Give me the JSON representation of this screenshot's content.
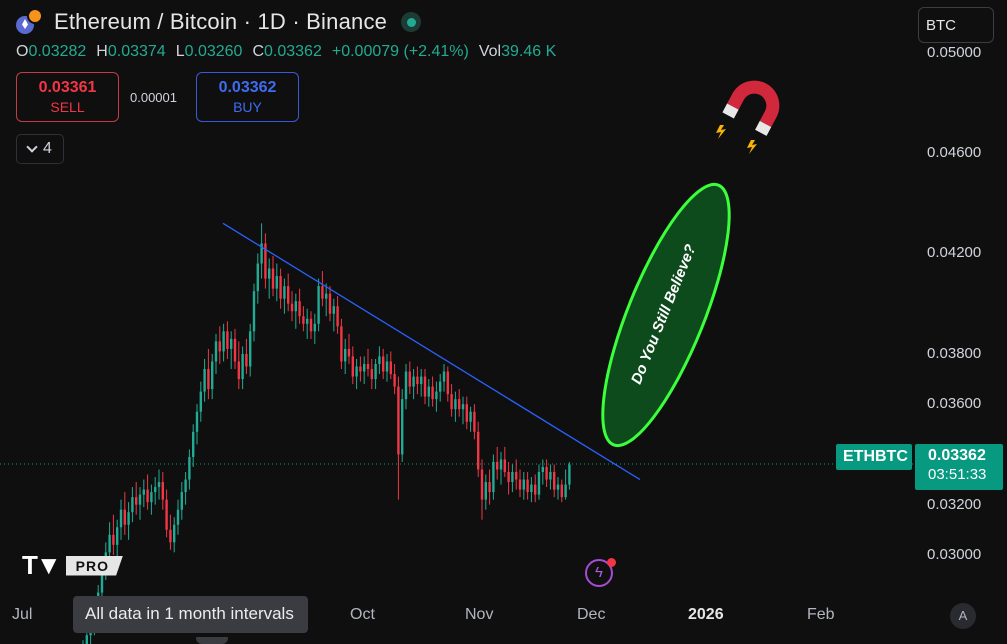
{
  "header": {
    "title": "Ethereum / Bitcoin · 1D · Binance",
    "ohlc": [
      {
        "k": "O",
        "v": "0.03282"
      },
      {
        "k": "H",
        "v": "0.03374"
      },
      {
        "k": "L",
        "v": "0.03260"
      },
      {
        "k": "C",
        "v": "0.03362"
      },
      {
        "k": "",
        "v": "+0.00079 (+2.41%)"
      },
      {
        "k": "Vol",
        "v": "39.46 K"
      }
    ]
  },
  "trade": {
    "sell_price": "0.03361",
    "sell_label": "SELL",
    "buy_price": "0.03362",
    "buy_label": "BUY",
    "spread": "0.00001"
  },
  "indicators_count": "4",
  "currency_label": "BTC",
  "logo_badge": "PRO",
  "tooltip": "All data in 1 month intervals",
  "last_price": {
    "symbol": "ETHBTC",
    "price": "0.03362",
    "countdown": "03:51:33"
  },
  "auto_scale_label": "A",
  "colors": {
    "up": "#22ab94",
    "down": "#f23645",
    "trendline": "#2962ff",
    "annotation_fill": "#0d4a1c",
    "annotation_stroke": "#3cff3c",
    "last_price": "#089981"
  },
  "chart_data": {
    "type": "candlestick",
    "yticks": [
      "0.05000",
      "0.04600",
      "0.04200",
      "0.03800",
      "0.03600",
      "0.03200",
      "0.03000"
    ],
    "xticks": [
      {
        "label": "Jul",
        "bold": false
      },
      {
        "label": "Oct",
        "bold": false
      },
      {
        "label": "Nov",
        "bold": false
      },
      {
        "label": "Dec",
        "bold": false
      },
      {
        "label": "2026",
        "bold": true
      },
      {
        "label": "Feb",
        "bold": false
      }
    ],
    "annotation": "Do You Still Believe?",
    "trendline": {
      "from": [
        "2025-08-23",
        0.0432
      ],
      "to": [
        "2025-12-18",
        0.033
      ]
    },
    "last_price_line": 0.03362,
    "candles_ohlc": [
      [
        0.0259,
        0.0266,
        0.0255,
        0.0263
      ],
      [
        0.0263,
        0.027,
        0.0259,
        0.0268
      ],
      [
        0.0268,
        0.0276,
        0.0264,
        0.0273
      ],
      [
        0.0273,
        0.0281,
        0.0268,
        0.0278
      ],
      [
        0.0278,
        0.0288,
        0.0271,
        0.0285
      ],
      [
        0.0285,
        0.0298,
        0.0281,
        0.0294
      ],
      [
        0.0294,
        0.0305,
        0.029,
        0.0301
      ],
      [
        0.0301,
        0.0313,
        0.0296,
        0.0308
      ],
      [
        0.0308,
        0.0316,
        0.03,
        0.0304
      ],
      [
        0.0304,
        0.0314,
        0.0299,
        0.0311
      ],
      [
        0.0311,
        0.0322,
        0.0306,
        0.0318
      ],
      [
        0.0318,
        0.0325,
        0.0308,
        0.0312
      ],
      [
        0.0312,
        0.0321,
        0.0306,
        0.0317
      ],
      [
        0.0317,
        0.0327,
        0.0313,
        0.0323
      ],
      [
        0.0323,
        0.0329,
        0.0316,
        0.032
      ],
      [
        0.032,
        0.0327,
        0.0314,
        0.0324
      ],
      [
        0.0324,
        0.033,
        0.0319,
        0.0326
      ],
      [
        0.0326,
        0.0332,
        0.0318,
        0.0321
      ],
      [
        0.0321,
        0.0328,
        0.0316,
        0.0325
      ],
      [
        0.0325,
        0.0331,
        0.032,
        0.0327
      ],
      [
        0.0327,
        0.0334,
        0.0322,
        0.0329
      ],
      [
        0.0329,
        0.0333,
        0.0318,
        0.0322
      ],
      [
        0.0322,
        0.0326,
        0.0307,
        0.031
      ],
      [
        0.031,
        0.0316,
        0.0302,
        0.0305
      ],
      [
        0.0305,
        0.0315,
        0.0301,
        0.0312
      ],
      [
        0.0312,
        0.0322,
        0.0308,
        0.0318
      ],
      [
        0.0318,
        0.0329,
        0.0314,
        0.0325
      ],
      [
        0.0325,
        0.0333,
        0.032,
        0.033
      ],
      [
        0.033,
        0.0342,
        0.0326,
        0.0339
      ],
      [
        0.0339,
        0.0352,
        0.0335,
        0.0349
      ],
      [
        0.0349,
        0.036,
        0.0344,
        0.0357
      ],
      [
        0.0357,
        0.0369,
        0.0353,
        0.0365
      ],
      [
        0.0365,
        0.0378,
        0.0361,
        0.0374
      ],
      [
        0.0374,
        0.0382,
        0.0362,
        0.0366
      ],
      [
        0.0366,
        0.038,
        0.0362,
        0.0377
      ],
      [
        0.0377,
        0.0388,
        0.0372,
        0.0385
      ],
      [
        0.0385,
        0.0391,
        0.0376,
        0.0381
      ],
      [
        0.0381,
        0.0392,
        0.0377,
        0.0389
      ],
      [
        0.0389,
        0.0393,
        0.0378,
        0.0382
      ],
      [
        0.0382,
        0.0389,
        0.0374,
        0.0386
      ],
      [
        0.0386,
        0.039,
        0.0374,
        0.0377
      ],
      [
        0.0377,
        0.0385,
        0.0366,
        0.037
      ],
      [
        0.037,
        0.0383,
        0.0366,
        0.038
      ],
      [
        0.038,
        0.0386,
        0.0372,
        0.0375
      ],
      [
        0.0375,
        0.0392,
        0.0371,
        0.0389
      ],
      [
        0.0389,
        0.0408,
        0.0385,
        0.0405
      ],
      [
        0.0405,
        0.042,
        0.04,
        0.0416
      ],
      [
        0.0416,
        0.0432,
        0.041,
        0.0424
      ],
      [
        0.0424,
        0.0428,
        0.0406,
        0.041
      ],
      [
        0.041,
        0.0418,
        0.0402,
        0.0414
      ],
      [
        0.0414,
        0.0419,
        0.0403,
        0.0406
      ],
      [
        0.0406,
        0.0416,
        0.0401,
        0.0411
      ],
      [
        0.0411,
        0.0414,
        0.0398,
        0.0402
      ],
      [
        0.0402,
        0.041,
        0.0396,
        0.0407
      ],
      [
        0.0407,
        0.0412,
        0.0397,
        0.04
      ],
      [
        0.04,
        0.0405,
        0.0393,
        0.0397
      ],
      [
        0.0397,
        0.0404,
        0.039,
        0.0401
      ],
      [
        0.0401,
        0.0406,
        0.0392,
        0.0395
      ],
      [
        0.0395,
        0.0399,
        0.0389,
        0.0392
      ],
      [
        0.0392,
        0.0398,
        0.0386,
        0.0394
      ],
      [
        0.0394,
        0.0397,
        0.0386,
        0.0389
      ],
      [
        0.0389,
        0.0396,
        0.0384,
        0.0392
      ],
      [
        0.0392,
        0.041,
        0.0389,
        0.0407
      ],
      [
        0.0407,
        0.0413,
        0.0399,
        0.0402
      ],
      [
        0.0402,
        0.0408,
        0.0395,
        0.0404
      ],
      [
        0.0404,
        0.0407,
        0.0393,
        0.0396
      ],
      [
        0.0396,
        0.0402,
        0.0389,
        0.0399
      ],
      [
        0.0399,
        0.0403,
        0.0388,
        0.0391
      ],
      [
        0.0391,
        0.0394,
        0.0374,
        0.0377
      ],
      [
        0.0377,
        0.0386,
        0.0372,
        0.0382
      ],
      [
        0.0382,
        0.0388,
        0.0376,
        0.0379
      ],
      [
        0.0379,
        0.0383,
        0.0368,
        0.0371
      ],
      [
        0.0371,
        0.0378,
        0.0366,
        0.0375
      ],
      [
        0.0375,
        0.0379,
        0.0369,
        0.0373
      ],
      [
        0.0373,
        0.0379,
        0.0368,
        0.0376
      ],
      [
        0.0376,
        0.0382,
        0.0371,
        0.0374
      ],
      [
        0.0374,
        0.0378,
        0.0366,
        0.037
      ],
      [
        0.037,
        0.0378,
        0.0366,
        0.0376
      ],
      [
        0.0376,
        0.0383,
        0.0372,
        0.0379
      ],
      [
        0.0379,
        0.0382,
        0.037,
        0.0373
      ],
      [
        0.0373,
        0.038,
        0.0369,
        0.0377
      ],
      [
        0.0377,
        0.0381,
        0.037,
        0.0372
      ],
      [
        0.0372,
        0.0376,
        0.0364,
        0.0367
      ],
      [
        0.0367,
        0.0371,
        0.0322,
        0.034
      ],
      [
        0.034,
        0.0366,
        0.0337,
        0.0362
      ],
      [
        0.0362,
        0.0376,
        0.0358,
        0.0373
      ],
      [
        0.0373,
        0.0377,
        0.0364,
        0.0367
      ],
      [
        0.0367,
        0.0374,
        0.0362,
        0.0371
      ],
      [
        0.0371,
        0.0375,
        0.0364,
        0.0368
      ],
      [
        0.0368,
        0.0374,
        0.0363,
        0.0371
      ],
      [
        0.0371,
        0.0374,
        0.036,
        0.0363
      ],
      [
        0.0363,
        0.037,
        0.0359,
        0.0367
      ],
      [
        0.0367,
        0.0371,
        0.0359,
        0.0362
      ],
      [
        0.0362,
        0.0369,
        0.0357,
        0.0365
      ],
      [
        0.0365,
        0.0372,
        0.0361,
        0.0369
      ],
      [
        0.0369,
        0.0376,
        0.0365,
        0.0373
      ],
      [
        0.0373,
        0.0375,
        0.0361,
        0.0364
      ],
      [
        0.0364,
        0.0368,
        0.0355,
        0.0358
      ],
      [
        0.0358,
        0.0365,
        0.0353,
        0.0362
      ],
      [
        0.0362,
        0.0366,
        0.0355,
        0.0358
      ],
      [
        0.0358,
        0.0363,
        0.0352,
        0.036
      ],
      [
        0.036,
        0.0363,
        0.035,
        0.0353
      ],
      [
        0.0353,
        0.0359,
        0.0349,
        0.0357
      ],
      [
        0.0357,
        0.036,
        0.0346,
        0.0349
      ],
      [
        0.0349,
        0.0353,
        0.0331,
        0.0334
      ],
      [
        0.0334,
        0.0338,
        0.0314,
        0.0322
      ],
      [
        0.0322,
        0.0332,
        0.0318,
        0.0329
      ],
      [
        0.0329,
        0.0334,
        0.032,
        0.0325
      ],
      [
        0.0325,
        0.034,
        0.0322,
        0.0337
      ],
      [
        0.0337,
        0.0343,
        0.033,
        0.0334
      ],
      [
        0.0334,
        0.0341,
        0.0328,
        0.0338
      ],
      [
        0.0338,
        0.0343,
        0.0331,
        0.0333
      ],
      [
        0.0333,
        0.0337,
        0.0324,
        0.0329
      ],
      [
        0.0329,
        0.0336,
        0.0325,
        0.0333
      ],
      [
        0.0333,
        0.0338,
        0.0326,
        0.033
      ],
      [
        0.033,
        0.0334,
        0.0323,
        0.0326
      ],
      [
        0.0326,
        0.0333,
        0.0322,
        0.033
      ],
      [
        0.033,
        0.0333,
        0.0322,
        0.0325
      ],
      [
        0.0325,
        0.0331,
        0.0321,
        0.0328
      ],
      [
        0.0328,
        0.0332,
        0.0321,
        0.0324
      ],
      [
        0.0324,
        0.0336,
        0.0322,
        0.0333
      ],
      [
        0.0333,
        0.0338,
        0.0328,
        0.0335
      ],
      [
        0.0335,
        0.0338,
        0.0327,
        0.033
      ],
      [
        0.033,
        0.0336,
        0.0326,
        0.0333
      ],
      [
        0.0333,
        0.0336,
        0.0323,
        0.0326
      ],
      [
        0.0326,
        0.0331,
        0.0322,
        0.0328
      ],
      [
        0.0328,
        0.033,
        0.0321,
        0.0323
      ],
      [
        0.0323,
        0.0334,
        0.0322,
        0.0328
      ],
      [
        0.0328,
        0.0337,
        0.0326,
        0.0336
      ]
    ]
  }
}
